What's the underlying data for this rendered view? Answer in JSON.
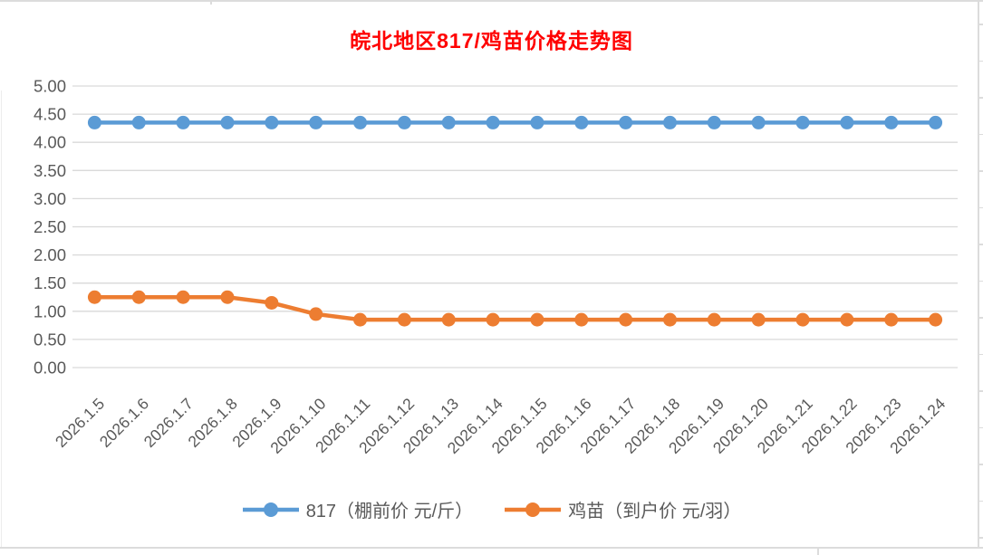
{
  "title": {
    "text": "皖北地区817/鸡苗价格走势图",
    "color": "#FF0000"
  },
  "chart_data": {
    "type": "line",
    "x": [
      "2026.1.5",
      "2026.1.6",
      "2026.1.7",
      "2026.1.8",
      "2026.1.9",
      "2026.1.10",
      "2026.1.11",
      "2026.1.12",
      "2026.1.13",
      "2026.1.14",
      "2026.1.15",
      "2026.1.16",
      "2026.1.17",
      "2026.1.18",
      "2026.1.19",
      "2026.1.20",
      "2026.1.21",
      "2026.1.22",
      "2026.1.23",
      "2026.1.24"
    ],
    "series": [
      {
        "name": "817（棚前价 元/斤）",
        "color": "#5B9BD5",
        "values": [
          4.35,
          4.35,
          4.35,
          4.35,
          4.35,
          4.35,
          4.35,
          4.35,
          4.35,
          4.35,
          4.35,
          4.35,
          4.35,
          4.35,
          4.35,
          4.35,
          4.35,
          4.35,
          4.35,
          4.35
        ]
      },
      {
        "name": "鸡苗（到户价 元/羽）",
        "color": "#ED7D31",
        "values": [
          1.25,
          1.25,
          1.25,
          1.25,
          1.15,
          0.95,
          0.85,
          0.85,
          0.85,
          0.85,
          0.85,
          0.85,
          0.85,
          0.85,
          0.85,
          0.85,
          0.85,
          0.85,
          0.85,
          0.85
        ]
      }
    ],
    "ylim": [
      0,
      5
    ],
    "ytick_step": 0.5,
    "ytick_labels": [
      "0.00",
      "0.50",
      "1.00",
      "1.50",
      "2.00",
      "2.50",
      "3.00",
      "3.50",
      "4.00",
      "4.50",
      "5.00"
    ],
    "grid": "horizontal",
    "gridline_color": "#D9D9D9",
    "axis_text_color": "#595959",
    "legend_position": "bottom",
    "marker": "circle"
  }
}
